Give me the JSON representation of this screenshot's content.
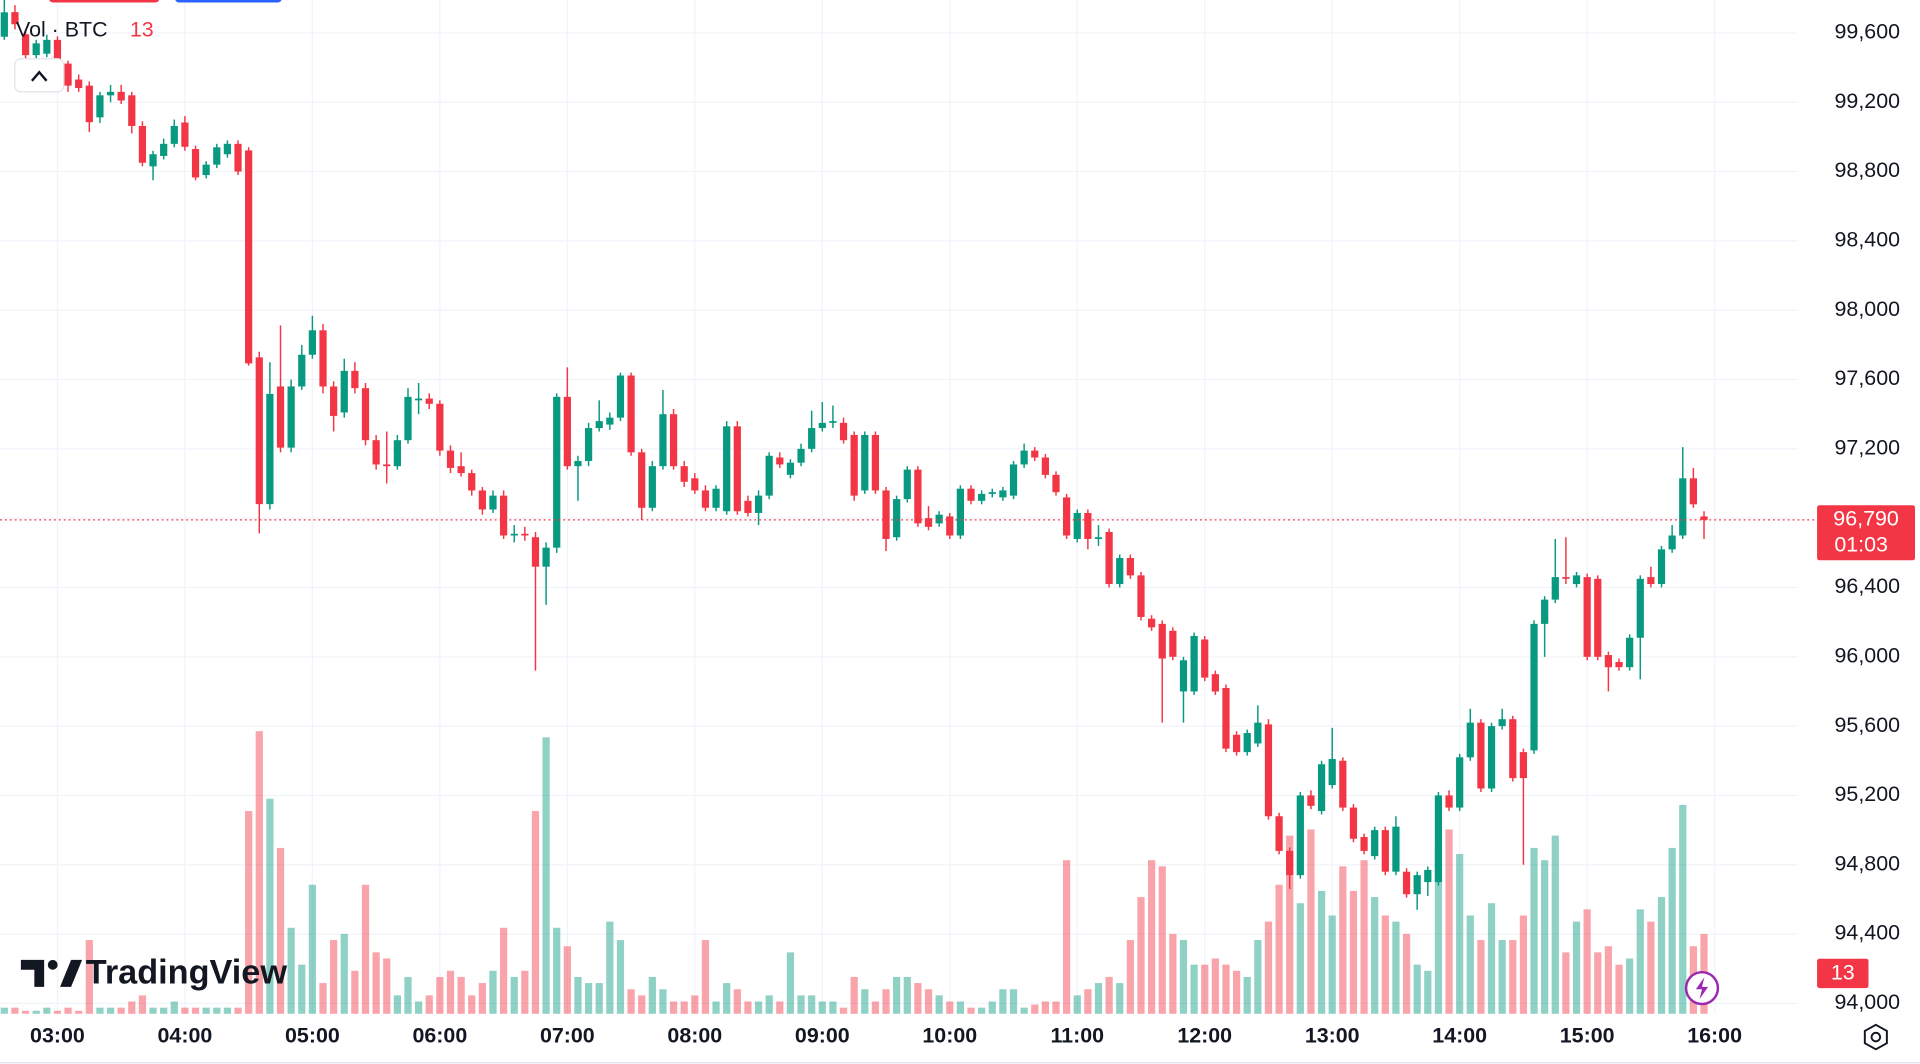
{
  "logo": "TradingView",
  "chart_data": {
    "type": "candlestick",
    "volume_title": "Vol · BTC",
    "countdown": "01:03",
    "last_price": {
      "value": 96790,
      "label": "96,790"
    },
    "up_color": "#089981",
    "down_color": "#f23645",
    "x": [
      "02:35",
      "02:40",
      "02:45",
      "02:50",
      "02:55",
      "03:00",
      "03:05",
      "03:10",
      "03:15",
      "03:20",
      "03:25",
      "03:30",
      "03:35",
      "03:40",
      "03:45",
      "03:50",
      "03:55",
      "04:00",
      "04:05",
      "04:10",
      "04:15",
      "04:20",
      "04:25",
      "04:30",
      "04:35",
      "04:40",
      "04:45",
      "04:50",
      "04:55",
      "05:00",
      "05:05",
      "05:10",
      "05:15",
      "05:20",
      "05:25",
      "05:30",
      "05:35",
      "05:40",
      "05:45",
      "05:50",
      "05:55",
      "06:00",
      "06:05",
      "06:10",
      "06:15",
      "06:20",
      "06:25",
      "06:30",
      "06:35",
      "06:40",
      "06:45",
      "06:50",
      "06:55",
      "07:00",
      "07:05",
      "07:10",
      "07:15",
      "07:20",
      "07:25",
      "07:30",
      "07:35",
      "07:40",
      "07:45",
      "07:50",
      "07:55",
      "08:00",
      "08:05",
      "08:10",
      "08:15",
      "08:20",
      "08:25",
      "08:30",
      "08:35",
      "08:40",
      "08:45",
      "08:50",
      "08:55",
      "09:00",
      "09:05",
      "09:10",
      "09:15",
      "09:20",
      "09:25",
      "09:30",
      "09:35",
      "09:40",
      "09:45",
      "09:50",
      "09:55",
      "10:00",
      "10:05",
      "10:10",
      "10:15",
      "10:20",
      "10:25",
      "10:30",
      "10:35",
      "10:40",
      "10:45",
      "10:50",
      "10:55",
      "11:00",
      "11:05",
      "11:10",
      "11:15",
      "11:20",
      "11:25",
      "11:30",
      "11:35",
      "11:40",
      "11:45",
      "11:50",
      "11:55",
      "12:00",
      "12:05",
      "12:10",
      "12:15",
      "12:20",
      "12:25",
      "12:30",
      "12:35",
      "12:40",
      "12:45",
      "12:50",
      "12:55",
      "13:00",
      "13:05",
      "13:10",
      "13:15",
      "13:20",
      "13:25",
      "13:30",
      "13:35",
      "13:40",
      "13:45",
      "13:50",
      "13:55",
      "14:00",
      "14:05",
      "14:10",
      "14:15",
      "14:20",
      "14:25",
      "14:30",
      "14:35",
      "14:40",
      "14:45",
      "14:50",
      "14:55",
      "15:00",
      "15:05",
      "15:10",
      "15:15",
      "15:20",
      "15:25",
      "15:30",
      "15:35",
      "15:40",
      "15:45",
      "15:50",
      "15:55"
    ],
    "open": [
      99578,
      99720,
      99592,
      99472,
      99480,
      99560,
      99423,
      99331,
      99296,
      99113,
      99240,
      99260,
      99240,
      99063,
      98830,
      98890,
      98960,
      99083,
      98930,
      98780,
      98840,
      98900,
      98960,
      98922,
      97728,
      96881,
      97560,
      97207,
      97560,
      97743,
      97884,
      97560,
      97410,
      97650,
      97550,
      97250,
      97110,
      97100,
      97250,
      97480,
      97490,
      97460,
      97190,
      97100,
      97060,
      96960,
      96850,
      96930,
      96700,
      96710,
      96690,
      96520,
      96630,
      97500,
      97100,
      97130,
      97320,
      97340,
      97380,
      97623,
      97180,
      96860,
      97100,
      97400,
      97100,
      97030,
      96960,
      96860,
      96840,
      97330,
      96900,
      96830,
      96930,
      97150,
      97050,
      97120,
      97200,
      97320,
      97350,
      97350,
      97280,
      96960,
      97280,
      96960,
      96690,
      96910,
      97080,
      96800,
      96770,
      96810,
      96700,
      96970,
      96900,
      96940,
      96920,
      96930,
      97110,
      97190,
      97150,
      97050,
      96920,
      96680,
      96830,
      96680,
      96720,
      96420,
      96570,
      96470,
      96220,
      96190,
      96150,
      95800,
      95800,
      96100,
      95900,
      95820,
      95550,
      95450,
      95500,
      95610,
      95080,
      94880,
      94740,
      95200,
      95110,
      95260,
      95400,
      95130,
      94960,
      94850,
      95000,
      94760,
      94760,
      94630,
      94700,
      94700,
      95200,
      95130,
      95420,
      95620,
      95240,
      95600,
      95640,
      95450,
      95460,
      96190,
      96330,
      96460,
      96420,
      96460,
      96450,
      96010,
      95970,
      95940,
      96110,
      96460,
      96420,
      96620,
      96700,
      97030,
      96810
    ],
    "high": [
      99790,
      99760,
      99620,
      99560,
      99590,
      99580,
      99440,
      99360,
      99320,
      99260,
      99300,
      99300,
      99260,
      99090,
      98920,
      98990,
      99100,
      99120,
      98950,
      98860,
      98960,
      98980,
      98980,
      98940,
      97760,
      97700,
      97912,
      97600,
      97800,
      97968,
      97920,
      97590,
      97720,
      97700,
      97580,
      97280,
      97300,
      97280,
      97550,
      97580,
      97520,
      97480,
      97220,
      97180,
      97080,
      96980,
      96960,
      96960,
      96760,
      96750,
      96720,
      96660,
      97520,
      97670,
      97160,
      97350,
      97480,
      97410,
      97640,
      97640,
      97200,
      97130,
      97540,
      97430,
      97130,
      97060,
      96990,
      96990,
      97360,
      97360,
      96930,
      96960,
      97180,
      97180,
      97140,
      97230,
      97420,
      97470,
      97450,
      97380,
      97300,
      97300,
      97300,
      96980,
      96930,
      97100,
      97100,
      96870,
      96840,
      96830,
      96990,
      96990,
      96960,
      96970,
      96980,
      97130,
      97230,
      97210,
      97170,
      97070,
      96940,
      96850,
      96850,
      96760,
      96740,
      96590,
      96590,
      96490,
      96240,
      96210,
      96170,
      96000,
      96140,
      96120,
      95920,
      95840,
      95570,
      95580,
      95720,
      95640,
      95100,
      94900,
      95220,
      95230,
      95400,
      95590,
      95420,
      95150,
      94980,
      95020,
      95020,
      95080,
      94780,
      94760,
      94790,
      95220,
      95230,
      95440,
      95700,
      95640,
      95620,
      95700,
      95660,
      95470,
      96210,
      96350,
      96680,
      96690,
      96490,
      96480,
      96470,
      96030,
      95990,
      96130,
      96470,
      96520,
      96640,
      96760,
      97210,
      97090,
      96840
    ],
    "low": [
      99560,
      99620,
      99450,
      99450,
      99460,
      99420,
      99260,
      99260,
      99028,
      99080,
      99200,
      99190,
      99020,
      98830,
      98750,
      98870,
      98940,
      98920,
      98750,
      98760,
      98820,
      98880,
      98780,
      97680,
      96712,
      96850,
      97180,
      97180,
      97540,
      97720,
      97520,
      97300,
      97380,
      97520,
      97220,
      97080,
      97000,
      97080,
      97230,
      97400,
      97430,
      97160,
      97060,
      97040,
      96930,
      96820,
      96830,
      96680,
      96660,
      96670,
      95920,
      96300,
      96600,
      97080,
      96900,
      97100,
      97300,
      97310,
      97360,
      97160,
      96790,
      96840,
      97080,
      97080,
      96980,
      96940,
      96840,
      96840,
      96820,
      96820,
      96810,
      96760,
      96910,
      97090,
      97030,
      97100,
      97180,
      97300,
      97320,
      97230,
      96900,
      96940,
      96940,
      96610,
      96670,
      96890,
      96750,
      96730,
      96750,
      96680,
      96680,
      96880,
      96880,
      96920,
      96900,
      96910,
      97090,
      97130,
      97030,
      96930,
      96680,
      96660,
      96620,
      96640,
      96400,
      96400,
      96450,
      96210,
      96150,
      95620,
      95980,
      95620,
      95780,
      95860,
      95780,
      95450,
      95430,
      95430,
      95480,
      95060,
      94860,
      94660,
      94720,
      95120,
      95090,
      95240,
      95110,
      94930,
      94860,
      94830,
      94740,
      94740,
      94610,
      94540,
      94620,
      94680,
      95110,
      95110,
      95400,
      95220,
      95220,
      95580,
      95280,
      94800,
      95440,
      96000,
      96310,
      96420,
      96400,
      95980,
      95980,
      95800,
      95920,
      95920,
      95870,
      96400,
      96400,
      96600,
      96680,
      96860,
      96680
    ],
    "close": [
      99719,
      99650,
      99472,
      99540,
      99560,
      99440,
      99296,
      99282,
      99085,
      99240,
      99260,
      99210,
      99063,
      98851,
      98900,
      98960,
      99063,
      98943,
      98766,
      98840,
      98940,
      98960,
      98800,
      97693,
      96881,
      97517,
      97207,
      97560,
      97743,
      97884,
      97560,
      97390,
      97650,
      97550,
      97250,
      97110,
      97100,
      97250,
      97500,
      97490,
      97460,
      97190,
      97090,
      97060,
      96960,
      96850,
      96930,
      96700,
      96710,
      96700,
      96520,
      96630,
      97500,
      97100,
      97130,
      97320,
      97360,
      97380,
      97623,
      97180,
      96860,
      97100,
      97400,
      97100,
      97010,
      96960,
      96860,
      96970,
      97330,
      96840,
      96830,
      96930,
      97160,
      97110,
      97120,
      97200,
      97320,
      97350,
      97360,
      97250,
      96930,
      97280,
      96960,
      96680,
      96910,
      97080,
      96770,
      96750,
      96820,
      96700,
      96970,
      96900,
      96940,
      96950,
      96960,
      97110,
      97190,
      97150,
      97050,
      96950,
      96700,
      96830,
      96680,
      96690,
      96420,
      96570,
      96470,
      96230,
      96170,
      95990,
      96000,
      95980,
      96120,
      95880,
      95800,
      95470,
      95450,
      95560,
      95620,
      95080,
      94880,
      94740,
      95200,
      95140,
      95380,
      95410,
      95130,
      94950,
      94880,
      95000,
      94760,
      95020,
      94630,
      94740,
      94770,
      95200,
      95130,
      95420,
      95620,
      95240,
      95600,
      95640,
      95300,
      95300,
      96190,
      96330,
      96460,
      96450,
      96470,
      96000,
      96000,
      95940,
      95940,
      96110,
      96450,
      96420,
      96620,
      96700,
      97030,
      96880,
      96790
    ],
    "volume": [
      1,
      1,
      0.5,
      0.5,
      1,
      0.5,
      1,
      0.5,
      12,
      1,
      1,
      1,
      2,
      3,
      1,
      1,
      2,
      1,
      1,
      1,
      1,
      1,
      1,
      33,
      46,
      35,
      27,
      14,
      8,
      21,
      5,
      12,
      13,
      7,
      21,
      10,
      9,
      3,
      6,
      2,
      3,
      6,
      7,
      6,
      3,
      5,
      7,
      14,
      6,
      7,
      33,
      45,
      14,
      11,
      6,
      5,
      5,
      15,
      12,
      4,
      3,
      6,
      4,
      2,
      2,
      3,
      12,
      2,
      5,
      4,
      2,
      2,
      3,
      2,
      10,
      3,
      3,
      2,
      2,
      1,
      6,
      4,
      2,
      4,
      6,
      6,
      5,
      4,
      3,
      2,
      2,
      1,
      1,
      2,
      4,
      4,
      1,
      1.5,
      2,
      2,
      25,
      3,
      4,
      5,
      6,
      5,
      12,
      19,
      25,
      24,
      13,
      12,
      8,
      8,
      9,
      8,
      7,
      6,
      12,
      15,
      21,
      29,
      18,
      30,
      20,
      16,
      24,
      20,
      25,
      19,
      16,
      15,
      13,
      8,
      7,
      27,
      30,
      26,
      16,
      12,
      18,
      12,
      12,
      16,
      27,
      25,
      29,
      10,
      15,
      17,
      10,
      11,
      8,
      9,
      17,
      15,
      19,
      27,
      34,
      11,
      13
    ],
    "xlim": [
      "02:33",
      "16:39"
    ],
    "xticks": [
      "03:00",
      "04:00",
      "05:00",
      "06:00",
      "07:00",
      "08:00",
      "09:00",
      "10:00",
      "11:00",
      "12:00",
      "13:00",
      "14:00",
      "15:00",
      "16:00"
    ],
    "ylim": [
      93940,
      99790
    ],
    "yticks": [
      {
        "value": 94000,
        "label": "94,000"
      },
      {
        "value": 94400,
        "label": "94,400"
      },
      {
        "value": 94800,
        "label": "94,800"
      },
      {
        "value": 95200,
        "label": "95,200"
      },
      {
        "value": 95600,
        "label": "95,600"
      },
      {
        "value": 96000,
        "label": "96,000"
      },
      {
        "value": 96400,
        "label": "96,400"
      },
      {
        "value": 96800,
        "label": "96,800"
      },
      {
        "value": 97200,
        "label": "97,200"
      },
      {
        "value": 97600,
        "label": "97,600"
      },
      {
        "value": 98000,
        "label": "98,000"
      },
      {
        "value": 98400,
        "label": "98,400"
      },
      {
        "value": 98800,
        "label": "98,800"
      },
      {
        "value": 99200,
        "label": "99,200"
      },
      {
        "value": 99600,
        "label": "99,600"
      }
    ],
    "vlim": [
      0,
      165
    ],
    "grid": true
  }
}
